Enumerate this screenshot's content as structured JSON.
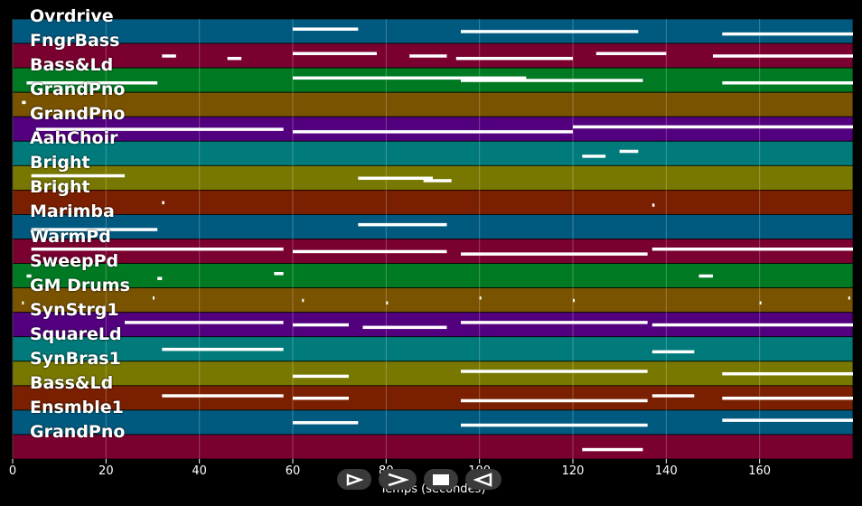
{
  "chart_data": {
    "type": "piano-roll",
    "xlabel": "Temps (secondes)",
    "xlim": [
      0,
      180
    ],
    "x_ticks": [
      0,
      20,
      40,
      60,
      80,
      100,
      120,
      140,
      160
    ],
    "grid": true,
    "tracks": [
      {
        "name": "Ovrdrive",
        "color": "#005a80",
        "notes": [
          [
            60,
            74
          ],
          [
            96,
            134
          ],
          [
            152,
            180
          ]
        ]
      },
      {
        "name": "FngrBass",
        "color": "#7a0030",
        "notes": [
          [
            32,
            35
          ],
          [
            46,
            49
          ],
          [
            60,
            78
          ],
          [
            85,
            93
          ],
          [
            95,
            120
          ],
          [
            125,
            140
          ],
          [
            150,
            180
          ]
        ]
      },
      {
        "name": "Bass&Ld",
        "color": "#007a22",
        "notes": [
          [
            3,
            31
          ],
          [
            60,
            110
          ],
          [
            96,
            135
          ],
          [
            152,
            180
          ]
        ]
      },
      {
        "name": "GrandPno",
        "color": "#7a5300",
        "notes": [
          [
            2,
            2.8
          ]
        ]
      },
      {
        "name": "GrandPno",
        "color": "#52007e",
        "notes": [
          [
            5,
            58
          ],
          [
            60,
            120
          ],
          [
            120,
            180
          ]
        ]
      },
      {
        "name": "AahChoir",
        "color": "#007a7a",
        "notes": [
          [
            122,
            127
          ],
          [
            130,
            134
          ]
        ]
      },
      {
        "name": "Bright",
        "color": "#787800",
        "notes": [
          [
            4,
            24
          ],
          [
            74,
            90
          ],
          [
            88,
            94
          ]
        ]
      },
      {
        "name": "Bright",
        "color": "#7a2000",
        "notes": [
          [
            32,
            32.5
          ],
          [
            137,
            137.5
          ]
        ]
      },
      {
        "name": "Marimba",
        "color": "#005a80",
        "notes": [
          [
            4,
            31
          ],
          [
            74,
            93
          ]
        ]
      },
      {
        "name": "WarmPd",
        "color": "#7a0030",
        "notes": [
          [
            4,
            58
          ],
          [
            60,
            93
          ],
          [
            96,
            136
          ],
          [
            137,
            180
          ]
        ]
      },
      {
        "name": "SweepPd",
        "color": "#007a22",
        "notes": [
          [
            3,
            4
          ],
          [
            31,
            32
          ],
          [
            56,
            58
          ],
          [
            147,
            150
          ]
        ]
      },
      {
        "name": "GM Drums",
        "color": "#7a5300",
        "notes": [
          [
            2,
            2.3
          ],
          [
            30,
            30.3
          ],
          [
            62,
            62.3
          ],
          [
            80,
            80.3
          ],
          [
            100,
            100.3
          ],
          [
            120,
            120.3
          ],
          [
            160,
            160.3
          ],
          [
            179,
            179.3
          ]
        ]
      },
      {
        "name": "SynStrg1",
        "color": "#52007e",
        "notes": [
          [
            24,
            58
          ],
          [
            60,
            72
          ],
          [
            75,
            93
          ],
          [
            96,
            136
          ],
          [
            137,
            180
          ]
        ]
      },
      {
        "name": "SquareLd",
        "color": "#007a7a",
        "notes": [
          [
            32,
            58
          ],
          [
            137,
            146
          ]
        ]
      },
      {
        "name": "SynBras1",
        "color": "#787800",
        "notes": [
          [
            60,
            72
          ],
          [
            96,
            136
          ],
          [
            152,
            180
          ]
        ]
      },
      {
        "name": "Bass&Ld",
        "color": "#7a2000",
        "notes": [
          [
            32,
            58
          ],
          [
            60,
            72
          ],
          [
            96,
            136
          ],
          [
            137,
            146
          ],
          [
            152,
            180
          ]
        ]
      },
      {
        "name": "Ensmble1",
        "color": "#005a80",
        "notes": [
          [
            60,
            74
          ],
          [
            96,
            136
          ],
          [
            152,
            180
          ]
        ]
      },
      {
        "name": "GrandPno",
        "color": "#7a0030",
        "notes": [
          [
            122,
            135
          ]
        ]
      }
    ]
  },
  "controls": {
    "play": "play-icon",
    "forward": "fast-forward-icon",
    "stop": "stop-icon",
    "rewind": "rewind-icon"
  }
}
